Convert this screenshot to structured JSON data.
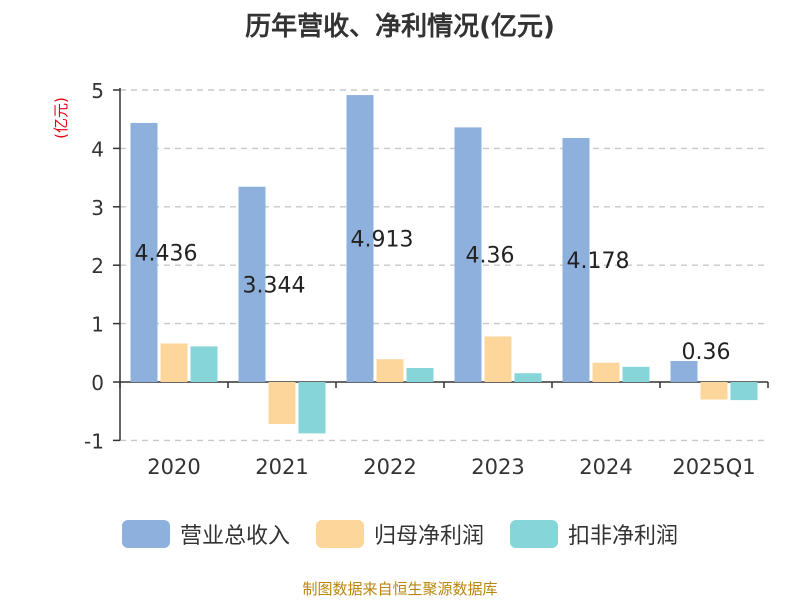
{
  "chart_data": {
    "type": "bar",
    "title": "历年营收、净利情况(亿元)",
    "ylabel": "(亿元)",
    "categories": [
      "2020",
      "2021",
      "2022",
      "2023",
      "2024",
      "2025Q1"
    ],
    "ylim": [
      -1,
      5
    ],
    "yticks": [
      "5",
      "4",
      "3",
      "2",
      "1",
      "0",
      "-1"
    ],
    "grid": true,
    "legend_position": "bottom",
    "series": [
      {
        "name": "营业总收入",
        "color": "#8eb0dc",
        "values": [
          4.436,
          3.344,
          4.913,
          4.36,
          4.178,
          0.36
        ],
        "labels": [
          "4.436",
          "3.344",
          "4.913",
          "4.36",
          "4.178",
          "0.36"
        ]
      },
      {
        "name": "归母净利润",
        "color": "#fcd69a",
        "values": [
          0.66,
          -0.72,
          0.39,
          0.78,
          0.33,
          -0.3
        ]
      },
      {
        "name": "扣非净利润",
        "color": "#86d5d8",
        "values": [
          0.61,
          -0.88,
          0.24,
          0.15,
          0.26,
          -0.31
        ]
      }
    ]
  },
  "source": "制图数据来自恒生聚源数据库"
}
